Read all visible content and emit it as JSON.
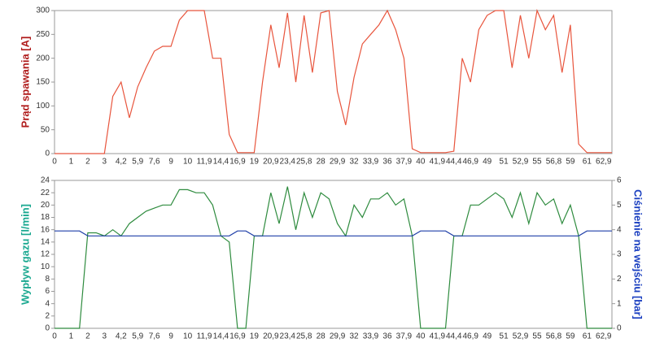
{
  "chart_data": [
    {
      "type": "line",
      "y_label": "Prąd spawania [A]",
      "color": "#e8553d",
      "categories": [
        "0",
        null,
        "1",
        null,
        "2",
        null,
        "3",
        null,
        "4,2",
        null,
        "5,9",
        null,
        "7,6",
        null,
        "9",
        null,
        "10",
        null,
        "11,9",
        null,
        "14,4",
        null,
        "16,9",
        null,
        "19",
        null,
        "20,9",
        null,
        "23,4",
        null,
        "25,8",
        null,
        "28",
        null,
        "29,9",
        null,
        "32",
        null,
        "33,9",
        null,
        "36",
        null,
        "37,9",
        null,
        "40",
        null,
        "41,9",
        null,
        "44,4",
        null,
        "46,9",
        null,
        "49",
        null,
        "51",
        null,
        "52,9",
        null,
        "55",
        null,
        "56,8",
        null,
        "59",
        null,
        "61",
        null,
        "62,9",
        null
      ],
      "values": [
        0,
        0,
        0,
        0,
        0,
        0,
        0,
        120,
        150,
        75,
        140,
        180,
        215,
        225,
        225,
        280,
        300,
        300,
        300,
        200,
        200,
        40,
        2,
        2,
        2,
        150,
        270,
        180,
        295,
        150,
        290,
        170,
        295,
        300,
        130,
        60,
        160,
        230,
        250,
        270,
        300,
        260,
        200,
        10,
        2,
        2,
        2,
        2,
        5,
        200,
        150,
        260,
        290,
        300,
        300,
        180,
        290,
        200,
        300,
        260,
        290,
        170,
        270,
        20,
        2,
        2,
        2,
        2
      ],
      "ylim": [
        0,
        300
      ],
      "yticks": [
        0,
        50,
        100,
        150,
        200,
        250,
        300
      ]
    },
    {
      "type": "line",
      "y_label": "Wypływ gazu [l/min]",
      "y2_label": "Ciśnienie na wejściu [bar]",
      "categories": [
        "0",
        null,
        "1",
        null,
        "2",
        null,
        "3",
        null,
        "4,2",
        null,
        "5,9",
        null,
        "7,6",
        null,
        "9",
        null,
        "10",
        null,
        "11,9",
        null,
        "14,4",
        null,
        "16,9",
        null,
        "19",
        null,
        "20,9",
        null,
        "23,4",
        null,
        "25,8",
        null,
        "28",
        null,
        "29,9",
        null,
        "32",
        null,
        "33,9",
        null,
        "36",
        null,
        "37,9",
        null,
        "40",
        null,
        "41,9",
        null,
        "44,4",
        null,
        "46,9",
        null,
        "49",
        null,
        "51",
        null,
        "52,9",
        null,
        "55",
        null,
        "56,8",
        null,
        "59",
        null,
        "61",
        null,
        "62,9",
        null
      ],
      "series": [
        {
          "color": "#2e8b3e",
          "values": [
            0,
            0,
            0,
            0,
            15.5,
            15.5,
            15,
            16,
            15,
            17,
            18,
            19,
            19.5,
            20,
            20,
            22.5,
            22.5,
            22,
            22,
            20,
            15,
            14,
            0,
            0,
            15,
            15,
            22,
            17,
            23,
            16,
            22,
            18,
            22,
            21,
            17,
            15,
            20,
            18,
            21,
            21,
            22,
            20,
            21,
            15,
            0,
            0,
            0,
            0,
            15,
            15,
            20,
            20,
            21,
            22,
            21,
            18,
            22,
            17,
            22,
            20,
            21,
            17,
            20,
            15,
            0,
            0,
            0,
            0
          ]
        },
        {
          "color": "#1f3fa8",
          "axis": "y2",
          "values": [
            3.95,
            3.95,
            3.95,
            3.95,
            3.75,
            3.75,
            3.75,
            3.75,
            3.75,
            3.75,
            3.75,
            3.75,
            3.75,
            3.75,
            3.75,
            3.75,
            3.75,
            3.75,
            3.75,
            3.75,
            3.75,
            3.75,
            3.95,
            3.95,
            3.75,
            3.75,
            3.75,
            3.75,
            3.75,
            3.75,
            3.75,
            3.75,
            3.75,
            3.75,
            3.75,
            3.75,
            3.75,
            3.75,
            3.75,
            3.75,
            3.75,
            3.75,
            3.75,
            3.75,
            3.95,
            3.95,
            3.95,
            3.95,
            3.75,
            3.75,
            3.75,
            3.75,
            3.75,
            3.75,
            3.75,
            3.75,
            3.75,
            3.75,
            3.75,
            3.75,
            3.75,
            3.75,
            3.75,
            3.75,
            3.95,
            3.95,
            3.95,
            3.95
          ]
        }
      ],
      "ylim": [
        0,
        24
      ],
      "yticks": [
        0,
        2,
        4,
        6,
        8,
        10,
        12,
        14,
        16,
        18,
        20,
        22,
        24
      ],
      "y2lim": [
        0,
        6
      ],
      "y2ticks": [
        0,
        1,
        2,
        3,
        4,
        5,
        6
      ]
    }
  ]
}
